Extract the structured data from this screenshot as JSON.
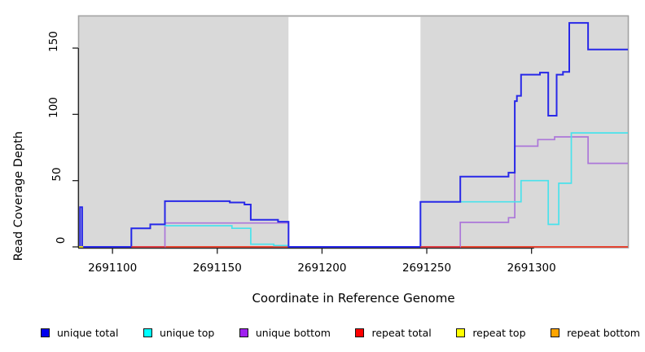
{
  "figure": {
    "background": "#FFFFFF"
  },
  "chart_data": {
    "type": "line",
    "style": "step",
    "title": "",
    "x_axis": {
      "label": "Coordinate in Reference Genome",
      "range": [
        2691084,
        2691346
      ],
      "ticks": [
        2691100,
        2691150,
        2691200,
        2691250,
        2691300
      ]
    },
    "y_axis": {
      "label": "Read Coverage Depth",
      "range": [
        0,
        174
      ],
      "ticks": [
        0,
        50,
        100,
        150
      ]
    },
    "panel": {
      "background": "#D9D9D9",
      "border": "#A3A3A3",
      "axis_color": "#222222"
    },
    "masked_region": {
      "from": 2691184,
      "to": 2691247,
      "color": "#FFFFFF"
    },
    "series": [
      {
        "name": "repeat top",
        "color": "#FFEB00",
        "width": 1.7,
        "points": [
          [
            2691084,
            0
          ]
        ]
      },
      {
        "name": "repeat bottom",
        "color": "#FF9D1E",
        "width": 1.7,
        "points": [
          [
            2691084,
            0
          ]
        ]
      },
      {
        "name": "repeat total",
        "color": "#E03535",
        "width": 1.7,
        "points": [
          [
            2691084,
            0
          ]
        ]
      },
      {
        "name": "unique bottom",
        "color": "#AC77D9",
        "width": 1.7,
        "points": [
          [
            2691084,
            0
          ],
          [
            2691125,
            18
          ],
          [
            2691184,
            0
          ],
          [
            2691266,
            18.5
          ],
          [
            2691289,
            22
          ],
          [
            2691292,
            76
          ],
          [
            2691303,
            81
          ],
          [
            2691311,
            83
          ],
          [
            2691327,
            63
          ]
        ]
      },
      {
        "name": "unique top",
        "color": "#49E2EC",
        "width": 1.7,
        "points": [
          [
            2691084,
            0
          ],
          [
            2691109,
            14
          ],
          [
            2691118,
            17
          ],
          [
            2691125,
            16
          ],
          [
            2691157,
            14
          ],
          [
            2691166,
            2
          ],
          [
            2691177,
            1
          ],
          [
            2691184,
            0
          ],
          [
            2691247,
            34
          ],
          [
            2691295,
            50
          ],
          [
            2691308,
            17
          ],
          [
            2691313,
            48
          ],
          [
            2691319,
            86
          ]
        ]
      },
      {
        "name": "unique total",
        "color": "#2828E8",
        "width": 2,
        "points": [
          [
            2691084,
            0
          ],
          [
            2691084.5,
            30
          ],
          [
            2691085.5,
            0
          ],
          [
            2691109,
            14
          ],
          [
            2691118,
            17
          ],
          [
            2691125,
            34.5
          ],
          [
            2691156,
            33.5
          ],
          [
            2691163,
            32
          ],
          [
            2691166,
            20.5
          ],
          [
            2691179,
            19
          ],
          [
            2691184,
            0
          ],
          [
            2691247,
            34
          ],
          [
            2691266,
            53
          ],
          [
            2691289,
            56
          ],
          [
            2691292,
            110
          ],
          [
            2691293,
            114
          ],
          [
            2691295,
            130
          ],
          [
            2691304,
            131.5
          ],
          [
            2691308,
            99
          ],
          [
            2691312,
            130
          ],
          [
            2691315,
            132
          ],
          [
            2691318,
            169
          ],
          [
            2691327,
            149
          ]
        ]
      }
    ],
    "baseline_segments": [
      {
        "color_of": "repeat top",
        "from": 2691084,
        "to": 2691086
      },
      {
        "color_of": "repeat total",
        "from": 2691109,
        "to": 2691125
      },
      {
        "color_of": "repeat total",
        "from": 2691247,
        "to": 2691266
      }
    ],
    "legend": {
      "items": [
        {
          "label": "unique total",
          "swatch_color": "#0000EE"
        },
        {
          "label": "unique top",
          "swatch_color": "#00FFFF"
        },
        {
          "label": "unique bottom",
          "swatch_color": "#A020F0"
        },
        {
          "label": "repeat total",
          "swatch_color": "#FF0000"
        },
        {
          "label": "repeat top",
          "swatch_color": "#FFFF00"
        },
        {
          "label": "repeat bottom",
          "swatch_color": "#FFA500"
        }
      ]
    }
  }
}
